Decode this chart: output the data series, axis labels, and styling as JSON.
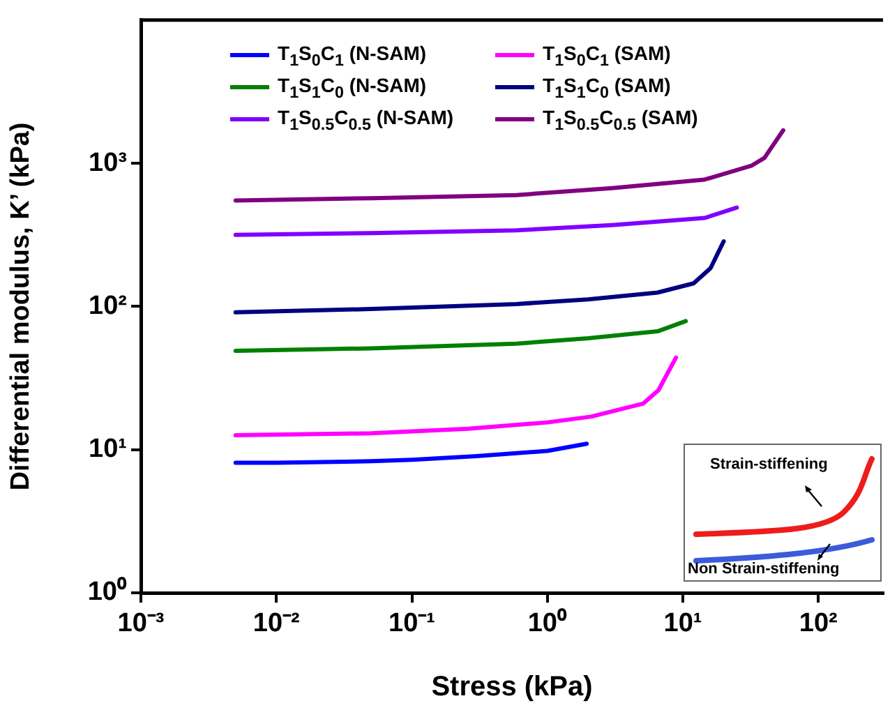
{
  "chart_data": {
    "type": "line",
    "xlabel": "Stress (kPa)",
    "ylabel": "Differential modulus, K’ (kPa)",
    "log": "xy",
    "grid": false,
    "legend": "top",
    "marker": "none",
    "line_style": "solid",
    "xlim": [
      0.001,
      300
    ],
    "xticks": [
      {
        "value": 0.001,
        "label": "10⁻³"
      },
      {
        "value": 0.01,
        "label": "10⁻²"
      },
      {
        "value": 0.1,
        "label": "10⁻¹"
      },
      {
        "value": 1,
        "label": "10⁰"
      },
      {
        "value": 10,
        "label": "10¹"
      },
      {
        "value": 100,
        "label": "10²"
      }
    ],
    "ylim": [
      1,
      10000
    ],
    "yticks": [
      {
        "value": 1,
        "label": "10⁰"
      },
      {
        "value": 10,
        "label": "10¹"
      },
      {
        "value": 100,
        "label": "10²"
      },
      {
        "value": 1000,
        "label": "10³"
      }
    ],
    "annotations": [
      "Strain-stiffening",
      "Non Strain-stiffening"
    ],
    "series": [
      {
        "name": "T$_{1}$S$_{0}$C$_{1}$ (N-SAM)",
        "color": "#0000ff",
        "x": [
          0.005,
          0.01,
          0.05,
          0.1,
          0.3,
          1,
          1.95
        ],
        "values": [
          8.1,
          8.1,
          8.3,
          8.5,
          9,
          9.8,
          11
        ]
      },
      {
        "name": "T$_{1}$S$_{0}$C$_{1}$ (SAM)",
        "color": "#ff00ff",
        "x": [
          0.005,
          0.05,
          0.26,
          1,
          2.1,
          5.1,
          6.6,
          8.9
        ],
        "values": [
          12.6,
          13,
          14,
          15.5,
          17,
          21,
          26,
          44
        ]
      },
      {
        "name": "T$_{1}$S$_{1}$C$_{0}$ (N-SAM)",
        "color": "#008000",
        "x": [
          0.005,
          0.05,
          0.59,
          2,
          6.5,
          10.5
        ],
        "values": [
          49,
          51,
          55,
          60,
          67,
          79
        ]
      },
      {
        "name": "T$_{1}$S$_{1}$C$_{0}$ (SAM)",
        "color": "#000080",
        "x": [
          0.005,
          0.05,
          0.59,
          2,
          6.5,
          12,
          16,
          20
        ],
        "values": [
          91,
          96,
          104,
          112,
          125,
          145,
          185,
          285
        ]
      },
      {
        "name": "T$_{1}$S$_{0.5}$C$_{0.5}$ (N-SAM)",
        "color": "#8000ff",
        "x": [
          0.005,
          0.05,
          0.59,
          3,
          14.5,
          25
        ],
        "values": [
          316,
          325,
          340,
          370,
          415,
          490
        ]
      },
      {
        "name": "T$_{1}$S$_{0.5}$C$_{0.5}$ (SAM)",
        "color": "#800080",
        "x": [
          0.005,
          0.05,
          0.59,
          3,
          14.5,
          32,
          40,
          55
        ],
        "values": [
          550,
          570,
          600,
          670,
          770,
          960,
          1090,
          1700
        ]
      }
    ]
  }
}
